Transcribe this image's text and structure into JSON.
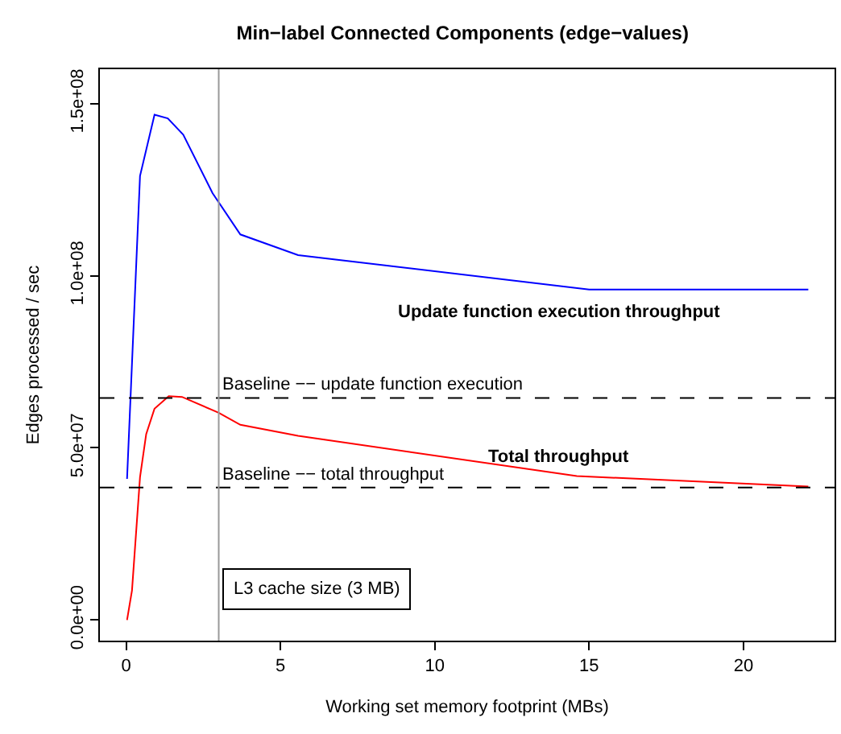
{
  "chart_data": {
    "type": "line",
    "title": "Min−label Connected Components (edge−values)",
    "xlabel": "Working set memory footprint (MBs)",
    "ylabel": "Edges processed / sec",
    "series": [
      {
        "name": "Update function execution throughput",
        "color": "#0000ff",
        "x": [
          0.03,
          0.45,
          0.92,
          1.35,
          1.85,
          2.8,
          3.7,
          5.57,
          15.0,
          22.1
        ],
        "values": [
          41000000,
          129000000,
          146800000,
          145700000,
          141000000,
          124000000,
          112000000,
          106000000,
          96000000,
          96000000
        ]
      },
      {
        "name": "Total throughput",
        "color": "#ff0000",
        "x": [
          0.03,
          0.19,
          0.45,
          0.65,
          0.92,
          1.38,
          1.81,
          3.0,
          3.7,
          5.57,
          14.6,
          22.1
        ],
        "values": [
          0,
          8600000,
          41500000,
          54000000,
          61400000,
          65000000,
          64800000,
          60200000,
          56700000,
          53500000,
          41800000,
          38800000
        ]
      }
    ],
    "xlim": [
      -0.85,
      22.95
    ],
    "ylim": [
      -6000000,
      160000000
    ],
    "xticks": [
      0,
      5,
      10,
      15,
      20
    ],
    "yticks": [
      {
        "value": 0,
        "label": "0.0e+00"
      },
      {
        "value": 50000000,
        "label": "5.0e+07"
      },
      {
        "value": 100000000,
        "label": "1.0e+08"
      },
      {
        "value": 150000000,
        "label": "1.5e+08"
      }
    ],
    "ref_lines": [
      {
        "axis": "y",
        "value": 64500000,
        "label": "Baseline −− update function execution",
        "color": "#000000",
        "line_style": "dashed"
      },
      {
        "axis": "y",
        "value": 38500000,
        "label": "Baseline −− total throughput",
        "color": "#000000",
        "line_style": "dashed"
      },
      {
        "axis": "x",
        "value": 3,
        "label": "L3 cache size (3 MB)",
        "color": "#999999",
        "line_style": "solid"
      }
    ],
    "legend": false,
    "marker": "none",
    "line_style": "solid"
  }
}
